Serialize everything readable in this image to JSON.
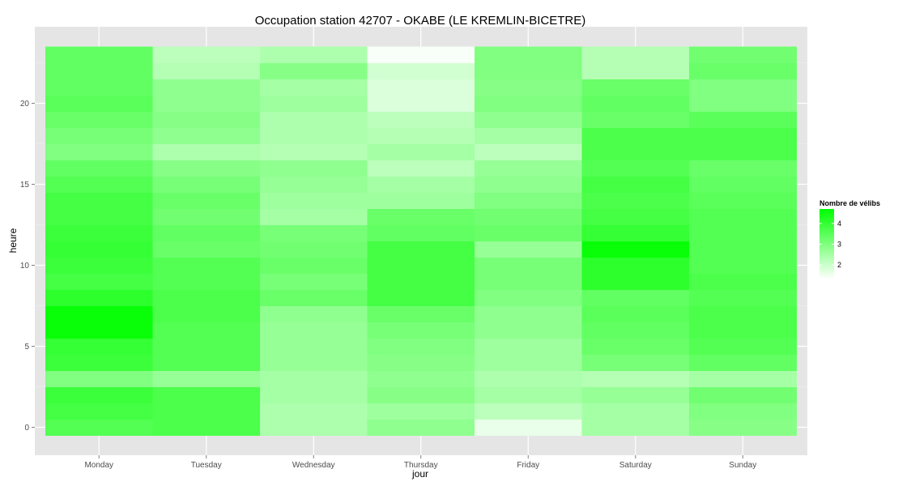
{
  "chart_data": {
    "type": "heatmap",
    "title": "Occupation station 42707 - OKABE (LE KREMLIN-BICETRE)",
    "xlabel": "jour",
    "ylabel": "heure",
    "x_categories": [
      "Monday",
      "Tuesday",
      "Wednesday",
      "Thursday",
      "Friday",
      "Saturday",
      "Sunday"
    ],
    "y_ticks": [
      0,
      5,
      10,
      15,
      20
    ],
    "y_range": [
      -0.5,
      23.5
    ],
    "grid": true,
    "legend": {
      "title": "Nombre de vélibs",
      "breaks": [
        2,
        3,
        4
      ],
      "range": [
        1.3,
        4.7
      ],
      "low_color": "#ffffff",
      "high_color": "#00ff00",
      "placement": "right"
    },
    "hours": [
      0,
      1,
      2,
      3,
      4,
      5,
      6,
      7,
      8,
      9,
      10,
      11,
      12,
      13,
      14,
      15,
      16,
      17,
      18,
      19,
      20,
      21,
      22,
      23
    ],
    "series": [
      {
        "name": "Monday",
        "values": [
          3.6,
          3.8,
          3.9,
          3.0,
          3.9,
          4.0,
          4.6,
          4.6,
          4.1,
          3.8,
          3.9,
          4.0,
          3.9,
          3.8,
          3.8,
          3.6,
          3.4,
          3.0,
          3.1,
          3.3,
          3.5,
          3.4,
          3.4,
          3.4
        ]
      },
      {
        "name": "Tuesday",
        "values": [
          3.7,
          3.7,
          3.7,
          2.7,
          3.6,
          3.6,
          3.6,
          3.7,
          3.7,
          3.6,
          3.6,
          3.3,
          3.4,
          3.2,
          3.3,
          3.1,
          2.9,
          2.4,
          2.8,
          2.9,
          2.8,
          2.8,
          2.3,
          2.2
        ]
      },
      {
        "name": "Wednesday",
        "values": [
          2.4,
          2.4,
          2.5,
          2.5,
          2.7,
          2.7,
          2.7,
          2.8,
          3.3,
          3.1,
          3.3,
          3.2,
          3.1,
          2.5,
          2.6,
          2.7,
          2.8,
          2.3,
          2.4,
          2.4,
          2.6,
          2.5,
          2.9,
          2.4
        ]
      },
      {
        "name": "Thursday",
        "values": [
          2.8,
          2.6,
          2.9,
          2.8,
          2.9,
          3.0,
          3.1,
          3.3,
          3.8,
          3.8,
          3.8,
          3.8,
          3.4,
          3.3,
          2.6,
          2.5,
          2.2,
          2.5,
          2.3,
          2.2,
          1.8,
          1.8,
          1.9,
          1.4
        ]
      },
      {
        "name": "Friday",
        "values": [
          1.6,
          2.2,
          2.5,
          2.4,
          2.6,
          2.6,
          2.8,
          2.8,
          3.0,
          3.1,
          3.1,
          2.7,
          3.3,
          3.2,
          3.0,
          2.8,
          2.7,
          2.2,
          2.5,
          2.8,
          3.0,
          2.9,
          3.0,
          3.0
        ]
      },
      {
        "name": "Saturday",
        "values": [
          2.5,
          2.5,
          2.7,
          2.3,
          3.1,
          3.3,
          3.4,
          3.5,
          3.4,
          4.1,
          4.1,
          4.6,
          4.0,
          3.8,
          3.7,
          3.8,
          3.6,
          3.7,
          3.7,
          3.3,
          3.4,
          3.3,
          2.3,
          2.3
        ]
      },
      {
        "name": "Sunday",
        "values": [
          2.9,
          3.0,
          3.2,
          2.5,
          3.4,
          3.6,
          3.7,
          3.7,
          3.6,
          3.7,
          3.6,
          3.6,
          3.6,
          3.6,
          3.5,
          3.4,
          3.3,
          3.7,
          3.7,
          3.5,
          3.0,
          3.0,
          3.3,
          3.2
        ]
      }
    ]
  }
}
